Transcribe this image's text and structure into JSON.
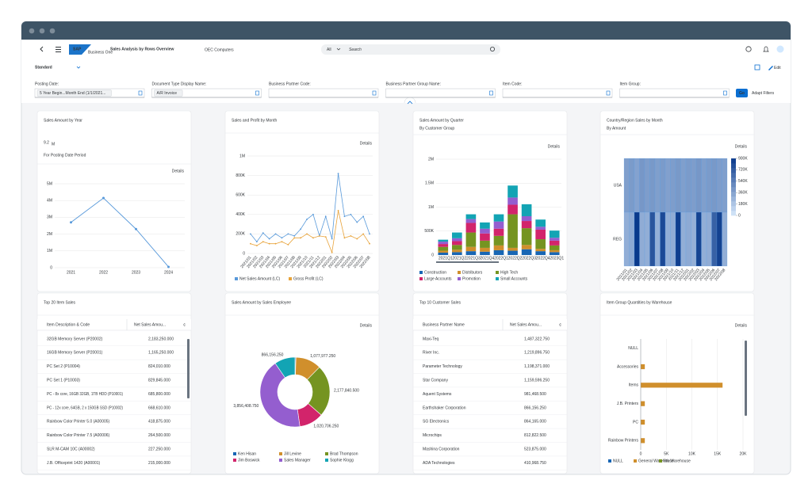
{
  "header": {
    "brand": "SAP",
    "product": "Business One",
    "title": "Sales Analysis by Rows Overview",
    "company": "OEC Computers",
    "search_scope": "All",
    "search_placeholder": "Search"
  },
  "variant": "Standard",
  "edit": "Edit",
  "filters": [
    {
      "label": "Posting Date:",
      "value": "5 Year Begin...Month End (1/1/2021..."
    },
    {
      "label": "Document Type Display Name:",
      "value": "A/R Invoice"
    },
    {
      "label": "Business Partner Code:"
    },
    {
      "label": "Business Partner Group Name:"
    },
    {
      "label": "Item Code:"
    },
    {
      "label": "Item Group:"
    }
  ],
  "go": "Go",
  "adapt_filters": "Adapt Filters",
  "cards": [
    {
      "title": "Sales Amount by Year",
      "kpi": "9.2",
      "kpi_unit": "M",
      "subtitle": "For Posting Date Period",
      "link": "Details",
      "chart": {
        "type": "line",
        "categories": [
          "2021",
          "2022",
          "2023",
          "2024"
        ],
        "values": [
          2700000,
          4150000,
          2300000,
          50000
        ],
        "color": "#5899da",
        "ylim": [
          0,
          5000000
        ],
        "yticks": [
          0,
          {
            "value": 1000000,
            "label": "1M"
          },
          {
            "value": 2000000,
            "label": "2M"
          },
          {
            "value": 3000000,
            "label": "3M"
          },
          {
            "value": 4000000,
            "label": "4M"
          },
          {
            "value": 5000000,
            "label": "5M"
          }
        ],
        "grid": true
      }
    },
    {
      "title": "Sales and Profit by Month",
      "link": "Details",
      "chart": {
        "type": "line",
        "categories": [
          "2021/01",
          "2021/02",
          "2021/03",
          "2021/04",
          "2021/05",
          "2021/06",
          "2021/07",
          "2021/08",
          "2021/09",
          "2021/10",
          "2021/11",
          "2021/12",
          "2022/01",
          "2022/02",
          "2022/03",
          "2022/04",
          "2022/05",
          "2022/06",
          "2022/07",
          "2022/08"
        ],
        "series": [
          {
            "name": "Net Sales Amount (LC)",
            "color": "#5899da",
            "values": [
              200000,
              120000,
              210000,
              150000,
              200000,
              160000,
              200000,
              180000,
              250000,
              350000,
              400000,
              180000,
              380000,
              150000,
              820000,
              380000,
              400000,
              320000,
              380000,
              200000
            ]
          },
          {
            "name": "Gross Profit (LC)",
            "color": "#e8a33a",
            "values": [
              100000,
              80000,
              120000,
              100000,
              100000,
              120000,
              90000,
              160000,
              160000,
              200000,
              160000,
              180000,
              170000,
              10000,
              440000,
              160000,
              180000,
              150000,
              200000,
              100000
            ]
          }
        ],
        "ylim": [
          0,
          1000000
        ],
        "yticks": [
          0,
          {
            "value": 200000,
            "label": "200K"
          },
          {
            "value": 400000,
            "label": "400K"
          },
          {
            "value": 600000,
            "label": "600K"
          },
          {
            "value": 800000,
            "label": "800K"
          },
          {
            "value": 1000000,
            "label": "1M"
          }
        ],
        "grid": true
      }
    },
    {
      "title": "Sales Amount by Quarter",
      "subtitle": "By Customer Group",
      "link": "Details",
      "chart": {
        "type": "stacked_bar",
        "categories": [
          "2021Q1",
          "2021Q2",
          "2021Q3",
          "2021Q4",
          "2022Q1",
          "2022Q2",
          "2022Q3",
          "2022Q4",
          "2023Q1"
        ],
        "series": [
          {
            "name": "Construction",
            "color": "#1866b4",
            "values": [
              50000,
              60000,
              80000,
              70000,
              100000,
              90000,
              120000,
              80000,
              60000
            ]
          },
          {
            "name": "Distributors",
            "color": "#d08f2c",
            "values": [
              40000,
              50000,
              90000,
              80000,
              100000,
              60000,
              90000,
              50000,
              40000
            ]
          },
          {
            "name": "High Tech",
            "color": "#759421",
            "values": [
              80000,
              100000,
              300000,
              150000,
              200000,
              700000,
              350000,
              200000,
              100000
            ]
          },
          {
            "name": "Large Accounts",
            "color": "#d2246b",
            "values": [
              60000,
              80000,
              200000,
              150000,
              150000,
              200000,
              150000,
              200000,
              100000
            ]
          },
          {
            "name": "Promotion",
            "color": "#945ecf",
            "values": [
              50000,
              60000,
              80000,
              100000,
              150000,
              150000,
              100000,
              60000,
              60000
            ]
          },
          {
            "name": "Small Accounts",
            "color": "#13a4b4",
            "values": [
              40000,
              120000,
              100000,
              130000,
              150000,
              250000,
              250000,
              150000,
              150000
            ]
          }
        ],
        "ylim": [
          0,
          2000000
        ],
        "yticks": [
          0,
          {
            "value": 500000,
            "label": "500K"
          },
          {
            "value": 1000000,
            "label": "1M"
          },
          {
            "value": 1500000,
            "label": "1.5M"
          },
          {
            "value": 2000000,
            "label": "2M"
          }
        ],
        "grid": true
      }
    },
    {
      "title": "Country/Region Sales by Month",
      "subtitle": "By Amount",
      "link": "Details",
      "chart": {
        "type": "heatmap",
        "rows": [
          "USA",
          "REG"
        ],
        "columns": [
          "2021/01",
          "2021/02",
          "2021/03",
          "2021/04",
          "2021/05",
          "2021/06",
          "2021/07",
          "2021/08",
          "2021/09",
          "2021/10",
          "2021/11",
          "2021/12",
          "2022/01",
          "2022/02",
          "2022/03",
          "2022/04",
          "2022/05",
          "2022/06",
          "2022/07",
          "2022/08"
        ],
        "values": [
          [
            380000,
            400000,
            360000,
            420000,
            390000,
            410000,
            380000,
            400000,
            370000,
            390000,
            410000,
            380000,
            400000,
            390000,
            420000,
            380000,
            400000,
            410000,
            390000,
            380000
          ],
          [
            300000,
            320000,
            900000,
            310000,
            300000,
            760000,
            290000,
            820000,
            300000,
            310000,
            880000,
            300000,
            320000,
            290000,
            850000,
            300000,
            310000,
            700000,
            860000,
            300000
          ]
        ],
        "colorlim": [
          0,
          900000
        ],
        "colorticks": [
          0,
          {
            "value": 180000,
            "label": "180K"
          },
          {
            "value": 360000,
            "label": "360K"
          },
          {
            "value": 540000,
            "label": "540K"
          },
          {
            "value": 720000,
            "label": "720K"
          },
          {
            "value": 900000,
            "label": "900K"
          }
        ]
      }
    },
    {
      "title": "Top 20 Item Sales",
      "chart": {
        "type": "table",
        "columns": [
          "Item Description & Code",
          "Net Sales Amou..."
        ],
        "rows": [
          [
            "32GB Memory Server (P20002)",
            "2,183,250.000"
          ],
          [
            "16GB Memory Server (P20001)",
            "1,165,250.000"
          ],
          [
            "PC Set 2 (P10004)",
            "824,010.000"
          ],
          [
            "PC Set 1 (P10003)",
            "829,845.000"
          ],
          [
            "PC - 8x core, 16GB 32GB, 1TB HDD (P10001)",
            "685,800.000"
          ],
          [
            "PC - 12x core, 64GB, 2 x 150GB SSD (P10002)",
            "668,610.000"
          ],
          [
            "Rainbow Color Printer 5.0 (A00005)",
            "418,875.000"
          ],
          [
            "Rainbow Color Printer 7.5 (A00006)",
            "264,500.000"
          ],
          [
            "SLR M-CAM 10C (A00002)",
            "227,250.000"
          ],
          [
            "J.B. Officeprint 1420 (A00001)",
            "215,000.000"
          ]
        ]
      }
    },
    {
      "title": "Sales Amount by Sales Employee",
      "link": "Details",
      "chart": {
        "type": "donut",
        "categories": [
          "Ken Hisan",
          "Jill Levine",
          "Brad Thompson",
          "Jim Boswick",
          "Sales Manager",
          "Sophie Klogg"
        ],
        "values": [
          40000,
          1077977.25,
          2177840.5,
          1020706.25,
          3856408.75,
          866156.25
        ],
        "value_labels": [
          null,
          "1,077,977.250",
          "2,177,840.500",
          "1,020,706.250",
          "3,856,408.750",
          "866,156.250"
        ],
        "colors": [
          "#1866b4",
          "#d08f2c",
          "#759421",
          "#d2246b",
          "#945ecf",
          "#13a4b4"
        ]
      }
    },
    {
      "title": "Top 10 Customer Sales",
      "chart": {
        "type": "table",
        "columns": [
          "Business Partner Name",
          "Net Sales Amou..."
        ],
        "rows": [
          [
            "Maxi-Teq",
            "1,487,322.750"
          ],
          [
            "River Inc.",
            "1,219,896.750"
          ],
          [
            "Parameter Technology",
            "1,198,371.000"
          ],
          [
            "Star Company",
            "1,159,596.250"
          ],
          [
            "Aquent Systems",
            "981,468.500"
          ],
          [
            "Earthshaker Corporation",
            "866,156.250"
          ],
          [
            "SG Electronics",
            "864,165.000"
          ],
          [
            "Microchips",
            "812,822.500"
          ],
          [
            "Mashina Corporation",
            "523,875.000"
          ],
          [
            "ADA Technologies",
            "410,968.750"
          ]
        ]
      }
    },
    {
      "title": "Item Group Quantities by Warehouse",
      "link": "Details",
      "chart": {
        "type": "hbar",
        "categories": [
          "NULL",
          "Accessories",
          "Items",
          "J.B. Printers",
          "PC",
          "Rainbow Printers"
        ],
        "series": [
          {
            "name": "NULL",
            "color": "#1866b4",
            "values": [
              null,
              null,
              null,
              null,
              null,
              null
            ]
          },
          {
            "name": "General Warehouse",
            "color": "#d08f2c",
            "values": [
              null,
              800,
              16000,
              800,
              800,
              800
            ]
          },
          {
            "name": "8th Warehouse",
            "color": "#759421",
            "values": [
              null,
              null,
              null,
              null,
              null,
              null
            ]
          }
        ],
        "xlim": [
          0,
          20000
        ],
        "xticks": [
          0,
          {
            "value": 5000,
            "label": "5K"
          },
          {
            "value": 10000,
            "label": "10K"
          },
          {
            "value": 15000,
            "label": "15K"
          },
          {
            "value": 20000,
            "label": "20K"
          }
        ],
        "grid": true
      }
    }
  ]
}
